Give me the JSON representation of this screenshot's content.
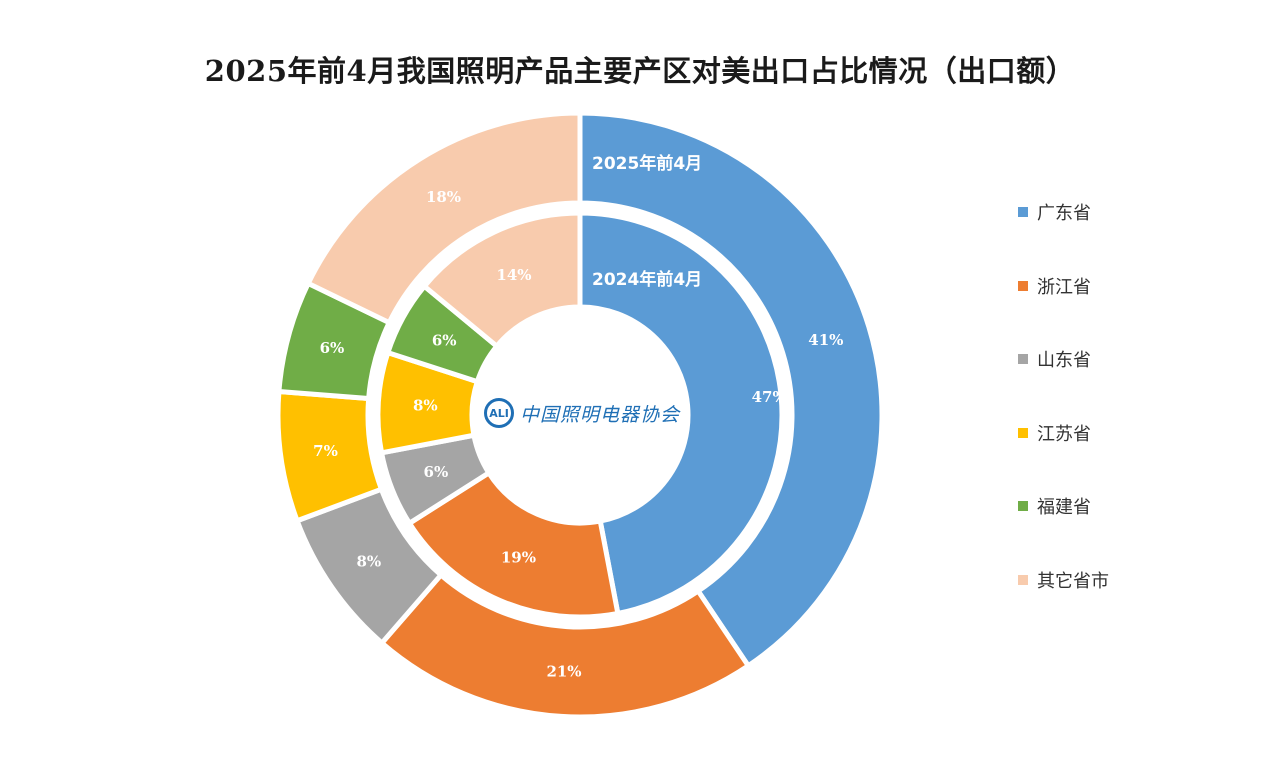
{
  "title": "2025年前4月我国照明产品主要产区对美出口占比情况（出口额）",
  "logo": {
    "mark": "ALI",
    "text": "中国照明电器协会"
  },
  "chart_data": {
    "type": "pie",
    "subtype": "donut",
    "title": "2025年前4月我国照明产品主要产区对美出口占比情况（出口额）",
    "categories": [
      "广东省",
      "浙江省",
      "山东省",
      "江苏省",
      "福建省",
      "其它省市"
    ],
    "colors": [
      "#5b9bd5",
      "#ed7d31",
      "#a5a5a5",
      "#ffc000",
      "#70ad47",
      "#f8cbad"
    ],
    "series": [
      {
        "name": "2025年前4月",
        "ring": "outer",
        "values": [
          41,
          21,
          8,
          7,
          6,
          18
        ],
        "labels": [
          "41%",
          "21%",
          "8%",
          "7%",
          "6%",
          "18%"
        ]
      },
      {
        "name": "2024年前4月",
        "ring": "inner",
        "values": [
          47,
          19,
          6,
          8,
          6,
          14
        ],
        "labels": [
          "47%",
          "19%",
          "6%",
          "8%",
          "6%",
          "14%"
        ]
      }
    ],
    "legend_position": "right"
  }
}
